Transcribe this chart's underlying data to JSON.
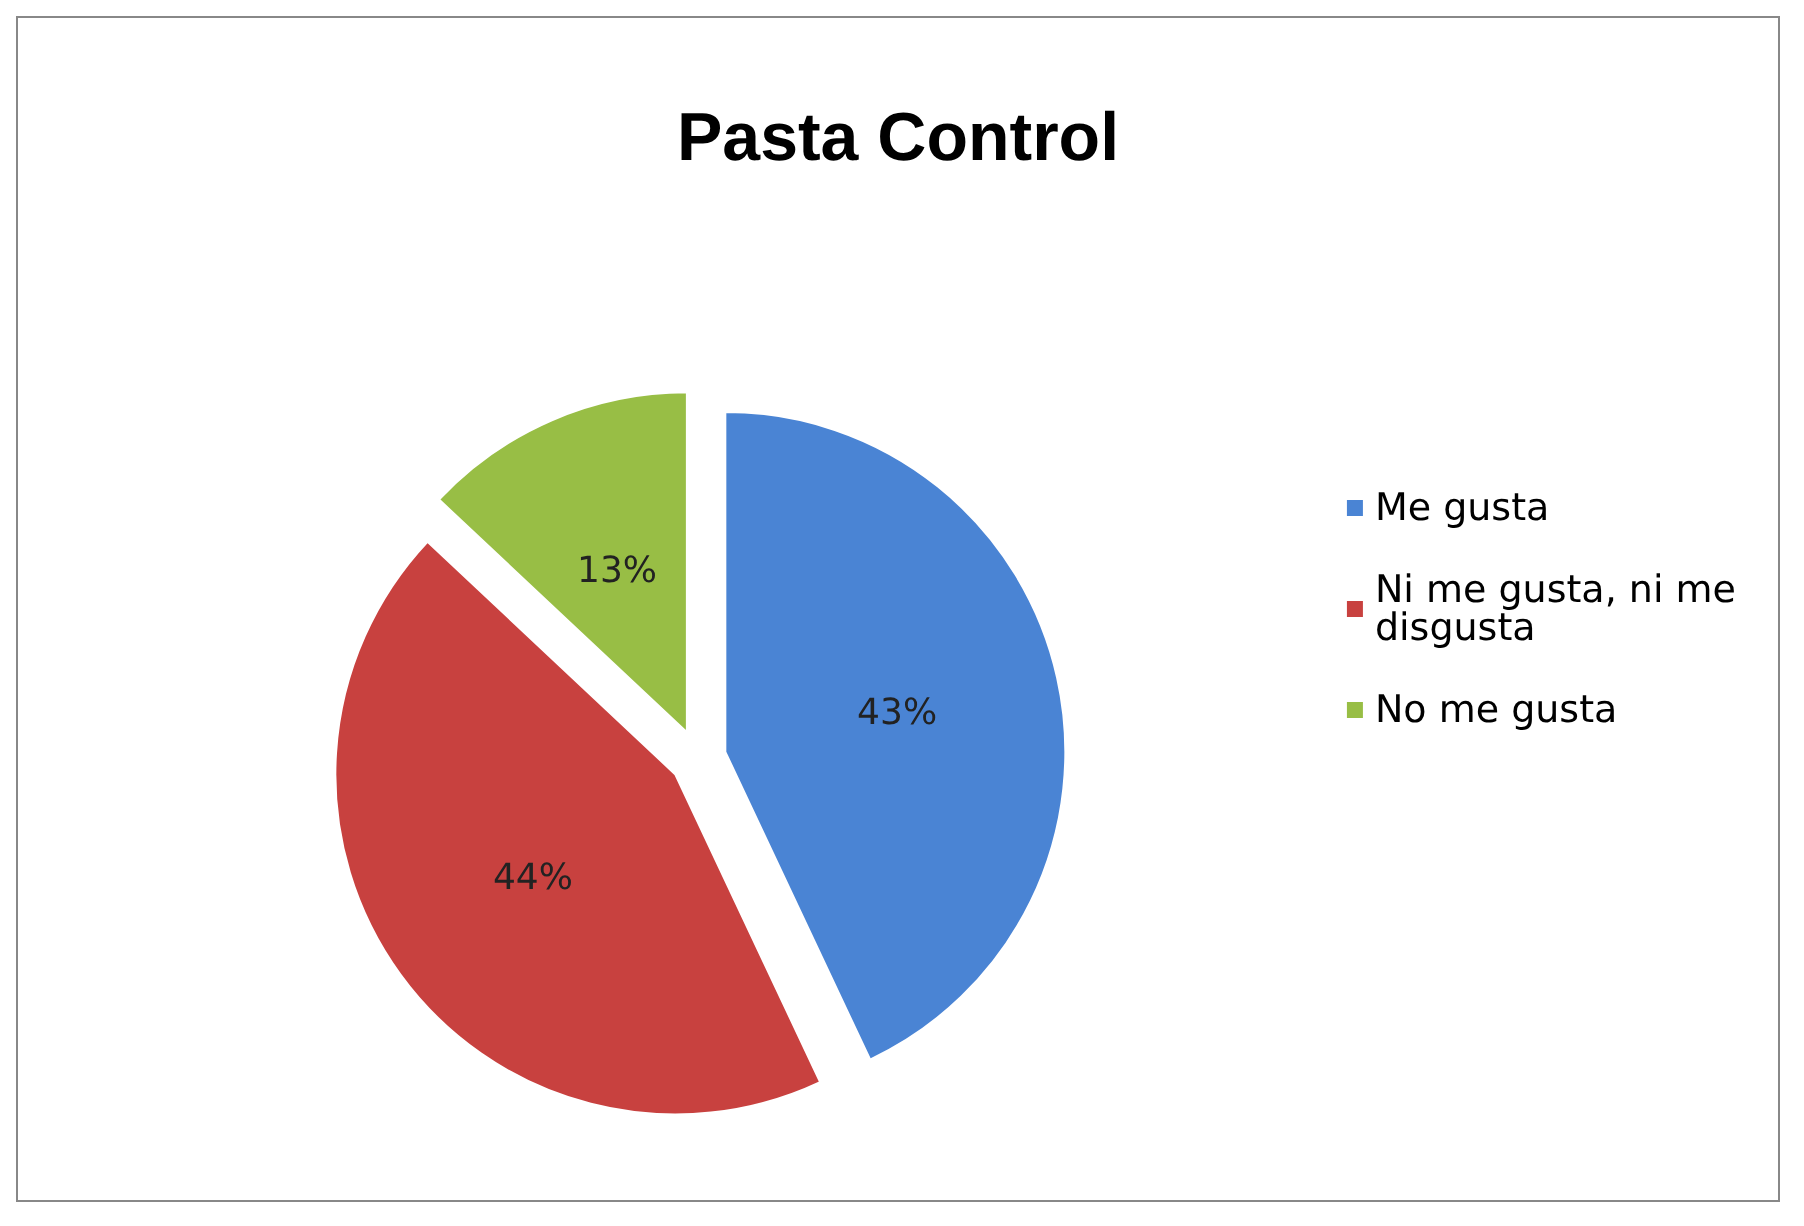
{
  "chart_data": {
    "type": "pie",
    "title": "Pasta Control",
    "categories": [
      "Me gusta",
      "Ni me gusta, ni me disgusta",
      "No me gusta"
    ],
    "values": [
      43,
      44,
      13
    ],
    "colors": [
      "#4a84d4",
      "#c8413f",
      "#98be45"
    ],
    "value_labels": [
      "43%",
      "44%",
      "13%"
    ],
    "legend": "right"
  }
}
